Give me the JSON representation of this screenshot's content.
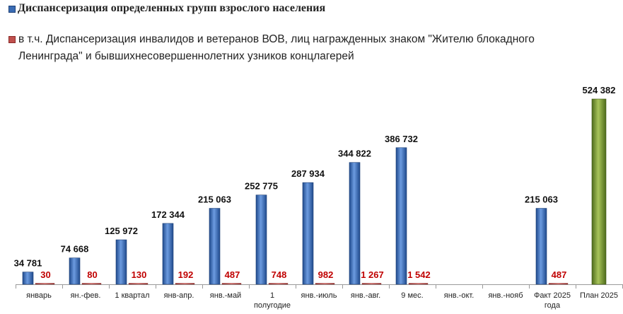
{
  "chart_data": {
    "type": "bar",
    "categories": [
      "январь",
      "ян.-фев.",
      "1 квартал",
      "янв-апр.",
      "янв.-май",
      "1 полугодие",
      "янв.-июль",
      "янв.-авг.",
      "9 мес.",
      "янв.-окт.",
      "янв.-нояб",
      "Факт 2025 года",
      "План 2025"
    ],
    "series": [
      {
        "name": "Диспансеризация определенных групп взрослого населения",
        "color": "#3a6cb4",
        "values": [
          34781,
          74668,
          125972,
          172344,
          215063,
          252775,
          287934,
          344822,
          386732,
          null,
          null,
          215063,
          524382
        ],
        "labels": [
          "34 781",
          "74 668",
          "125 972",
          "172 344",
          "215 063",
          "252 775",
          "287 934",
          "344 822",
          "386 732",
          "",
          "",
          "215 063",
          "524 382"
        ]
      },
      {
        "name": "в т.ч. Диспансеризация инвалидов и ветеранов ВОВ, лиц награжденных знаком \"Жителю блокадного Ленинграда\" и бывшихнесовершеннолетних  узников концлагерей",
        "color": "#c0504d",
        "values": [
          30,
          80,
          130,
          192,
          487,
          748,
          982,
          1267,
          1542,
          null,
          null,
          487,
          null
        ],
        "labels": [
          "30",
          "80",
          "130",
          "192",
          "487",
          "748",
          "982",
          "1 267",
          "1 542",
          "",
          "",
          "487",
          ""
        ]
      }
    ],
    "plan_color": "#7a9a3a",
    "ylim": [
      0,
      560000
    ],
    "grid": false,
    "legend": "top-left"
  }
}
